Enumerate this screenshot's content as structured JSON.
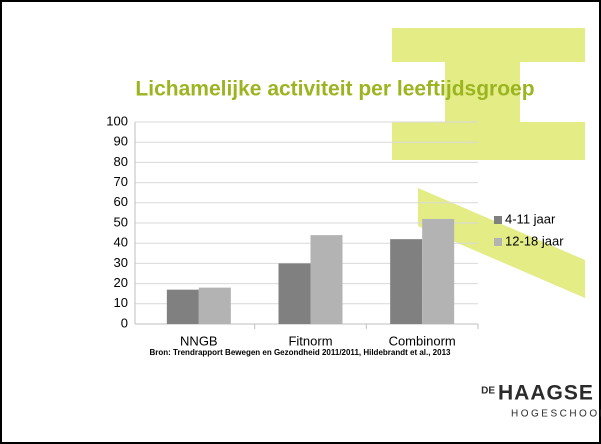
{
  "chart_data": {
    "type": "bar",
    "title": "Lichamelijke activiteit per leeftijdsgroep",
    "categories": [
      "NNGB",
      "Fitnorm",
      "Combinorm"
    ],
    "series": [
      {
        "name": "4-11 jaar",
        "color": "#808080",
        "values": [
          17,
          30,
          42
        ]
      },
      {
        "name": "12-18 jaar",
        "color": "#b3b3b3",
        "values": [
          18,
          44,
          52
        ]
      }
    ],
    "ylim": [
      0,
      100
    ],
    "yticks": [
      0,
      10,
      20,
      30,
      40,
      50,
      60,
      70,
      80,
      90,
      100
    ],
    "grid": true,
    "legend": "right",
    "source": "Bron: Trendrapport Bewegen en Gezondheid 2011/2011, Hildebrandt et al., 2013"
  },
  "logo": {
    "prefix": "DE",
    "name": "HAAGSE",
    "subtitle": "HOGESCHOOL"
  }
}
